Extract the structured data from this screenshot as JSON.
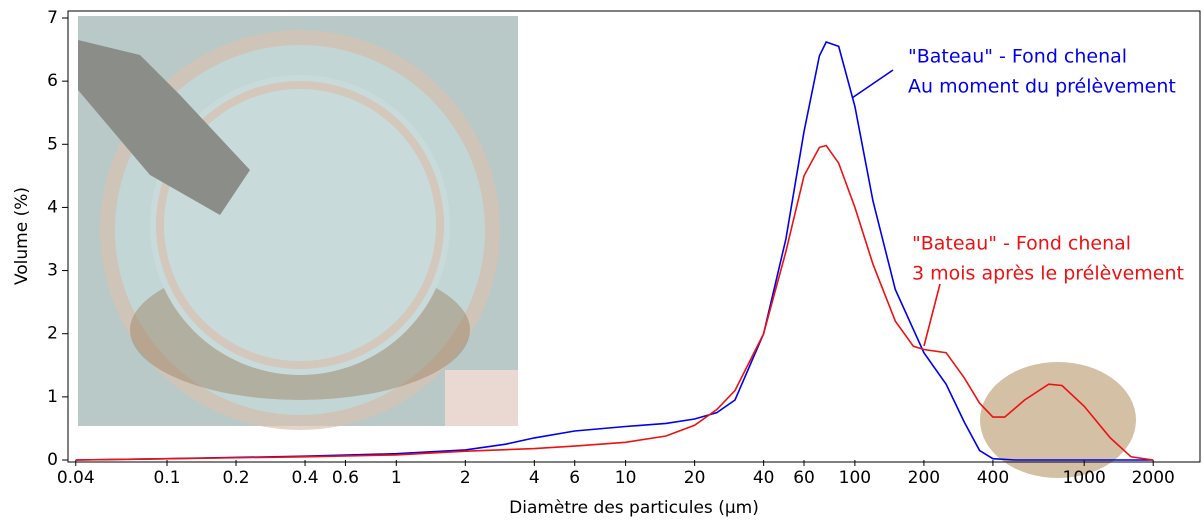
{
  "chart_data": {
    "type": "line",
    "ylabel": "Volume (%)",
    "xlabel": "Diamètre des particules (µm)",
    "xscale": "log",
    "xlim": [
      0.037,
      3200
    ],
    "ylim": [
      0,
      7.1
    ],
    "xticks": [
      0.04,
      0.1,
      0.2,
      0.4,
      0.6,
      1,
      2,
      4,
      6,
      10,
      20,
      40,
      60,
      100,
      200,
      400,
      1000,
      2000
    ],
    "yticks": [
      0,
      1,
      2,
      3,
      4,
      5,
      6,
      7
    ],
    "series": [
      {
        "color": "#0000ee",
        "label": [
          "\"Bateau\" - Fond chenal",
          "Au moment du prélèvement"
        ],
        "x": [
          0.04,
          0.1,
          0.4,
          1,
          2,
          3,
          4,
          6,
          10,
          15,
          20,
          25,
          30,
          40,
          50,
          60,
          70,
          75,
          85,
          100,
          120,
          150,
          200,
          250,
          300,
          350,
          400,
          500,
          2000
        ],
        "values": [
          0,
          0.02,
          0.06,
          0.1,
          0.16,
          0.25,
          0.35,
          0.46,
          0.53,
          0.58,
          0.65,
          0.75,
          0.95,
          2.0,
          3.5,
          5.2,
          6.4,
          6.62,
          6.55,
          5.6,
          4.1,
          2.7,
          1.7,
          1.2,
          0.6,
          0.15,
          0.02,
          0,
          0
        ]
      },
      {
        "color": "#ee1111",
        "label": [
          "\"Bateau\" - Fond chenal",
          "3 mois après le prélèvement"
        ],
        "x": [
          0.04,
          0.4,
          1,
          2,
          4,
          6,
          10,
          15,
          20,
          25,
          30,
          40,
          50,
          60,
          70,
          75,
          85,
          100,
          120,
          150,
          180,
          200,
          250,
          300,
          350,
          400,
          450,
          550,
          700,
          800,
          1000,
          1300,
          1600,
          2000
        ],
        "values": [
          0,
          0.05,
          0.08,
          0.14,
          0.18,
          0.22,
          0.28,
          0.38,
          0.55,
          0.8,
          1.1,
          2.0,
          3.3,
          4.5,
          4.95,
          4.98,
          4.7,
          4.0,
          3.1,
          2.2,
          1.8,
          1.75,
          1.7,
          1.3,
          0.9,
          0.68,
          0.68,
          0.95,
          1.2,
          1.18,
          0.85,
          0.35,
          0.05,
          0
        ]
      }
    ]
  }
}
